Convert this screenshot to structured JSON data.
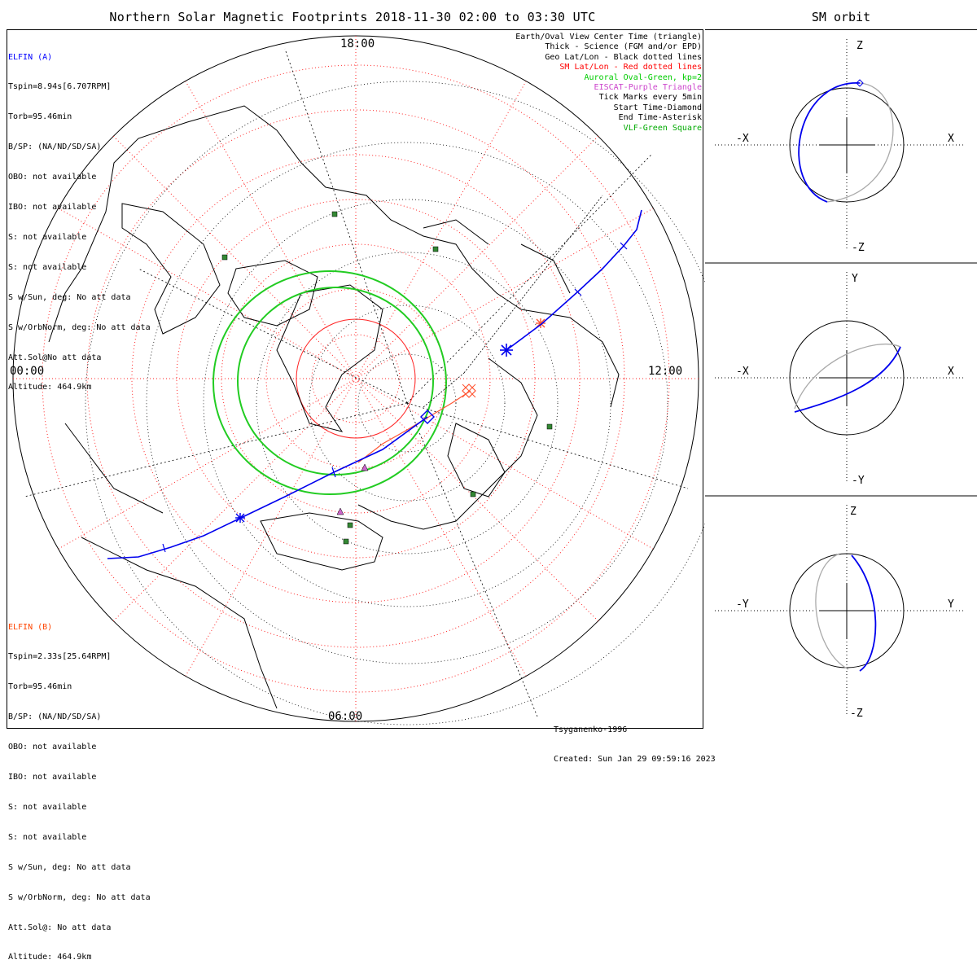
{
  "title": "Northern Solar Magnetic Footprints 2018-11-30 02:00 to 03:30 UTC",
  "orbit_title": "SM orbit",
  "colors": {
    "elfin_a": "#0000ff",
    "elfin_b": "#ff3300",
    "auroral_oval": "#00cc00",
    "eiscat": "#cc44cc",
    "vlf": "#228822",
    "sm_grid": "#ff0000",
    "geo_grid": "#000000"
  },
  "map": {
    "time_labels": {
      "top": "18:00",
      "left": "00:00",
      "right": "12:00",
      "bottom": "06:00"
    }
  },
  "elfin_a": {
    "name": "ELFIN (A)",
    "lines": [
      "Tspin=8.94s[6.707RPM]",
      "Torb=95.46min",
      "B/SP: (NA/ND/SD/SA)",
      "OBO: not available",
      "IBO: not available",
      "S: not available",
      "S: not available",
      "S w/Sun, deg: No att data",
      "S w/OrbNorm, deg: No att data",
      "Att.Sol@No att data",
      "Altitude: 464.9km"
    ]
  },
  "elfin_b": {
    "name": "ELFIN (B)",
    "lines": [
      "Tspin=2.33s[25.64RPM]",
      "Torb=95.46min",
      "B/SP: (NA/ND/SD/SA)",
      "OBO: not available",
      "IBO: not available",
      "S: not available",
      "S: not available",
      "S w/Sun, deg: No att data",
      "S w/OrbNorm, deg: No att data",
      "Att.Sol@: No att data",
      "Altitude: 464.9km"
    ]
  },
  "legend": [
    {
      "text": "Earth/Oval View Center Time (triangle)",
      "color": "#000000"
    },
    {
      "text": "Thick - Science (FGM and/or EPD)",
      "color": "#000000"
    },
    {
      "text": "Geo Lat/Lon - Black dotted lines",
      "color": "#000000"
    },
    {
      "text": "SM Lat/Lon - Red dotted lines",
      "color": "#ff0000"
    },
    {
      "text": "Auroral Oval-Green, kp=2",
      "color": "#00cc00"
    },
    {
      "text": "EISCAT-Purple Triangle",
      "color": "#cc44cc"
    },
    {
      "text": "Tick Marks every 5min",
      "color": "#000000"
    },
    {
      "text": "Start Time-Diamond",
      "color": "#000000"
    },
    {
      "text": "End Time-Asterisk",
      "color": "#000000"
    },
    {
      "text": "VLF-Green Square",
      "color": "#00aa00"
    }
  ],
  "footer": {
    "model": "Tsyganenko-1996",
    "created": "Created: Sun Jan 29 09:59:16 2023"
  },
  "panels": [
    {
      "top": "Z",
      "bottom": "-Z",
      "left": "-X",
      "right": "X"
    },
    {
      "top": "Y",
      "bottom": "-Y",
      "left": "-X",
      "right": "X"
    },
    {
      "top": "Z",
      "bottom": "-Z",
      "left": "-Y",
      "right": "Y"
    }
  ]
}
